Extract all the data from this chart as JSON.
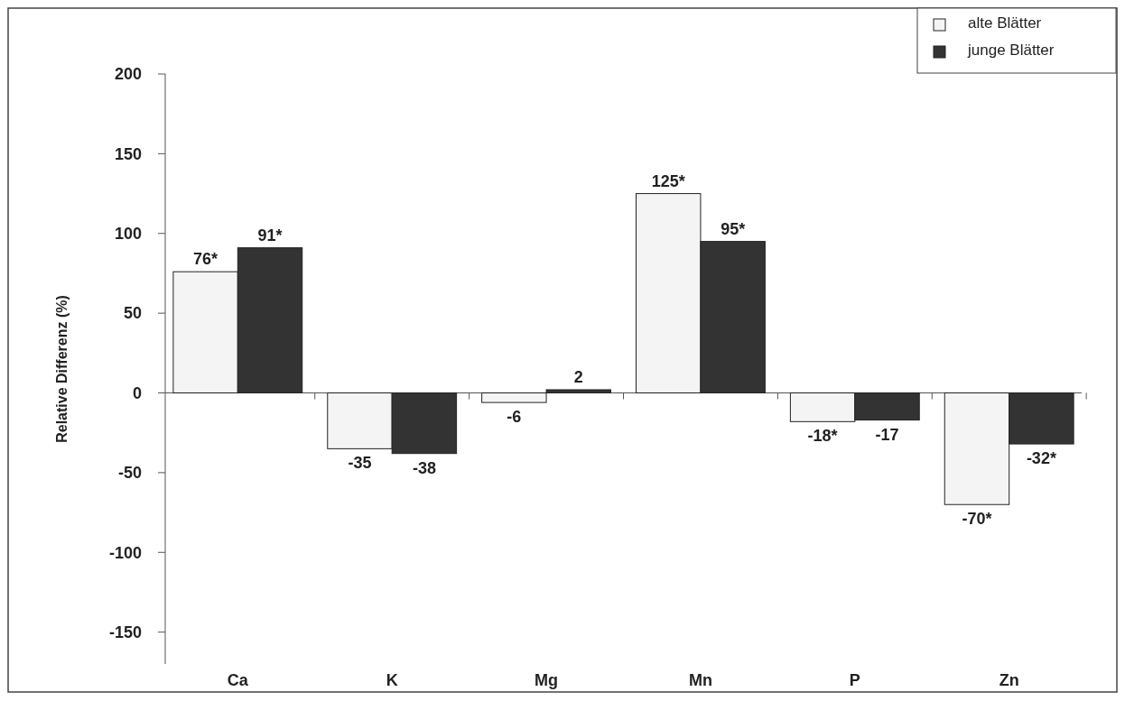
{
  "chart_data": {
    "type": "bar",
    "ylabel": "Relative Differenz (%)",
    "categories": [
      "Ca",
      "K",
      "Mg",
      "Mn",
      "P",
      "Zn"
    ],
    "series": [
      {
        "name": "alte Blätter",
        "color": "#f4f4f4",
        "values": [
          76,
          -35,
          -6,
          125,
          -18,
          -70
        ],
        "value_labels": [
          "76*",
          "-35",
          "-6",
          "125*",
          "-18*",
          "-70*"
        ]
      },
      {
        "name": "junge Blätter",
        "color": "#333333",
        "values": [
          91,
          -38,
          2,
          95,
          -17,
          -32
        ],
        "value_labels": [
          "91*",
          "-38",
          "2",
          "95*",
          "-17",
          "-32*"
        ]
      }
    ],
    "ylim": [
      -170,
      200
    ],
    "yticks": [
      -150,
      -100,
      -50,
      0,
      50,
      100,
      150,
      200
    ],
    "legend": "top right"
  }
}
